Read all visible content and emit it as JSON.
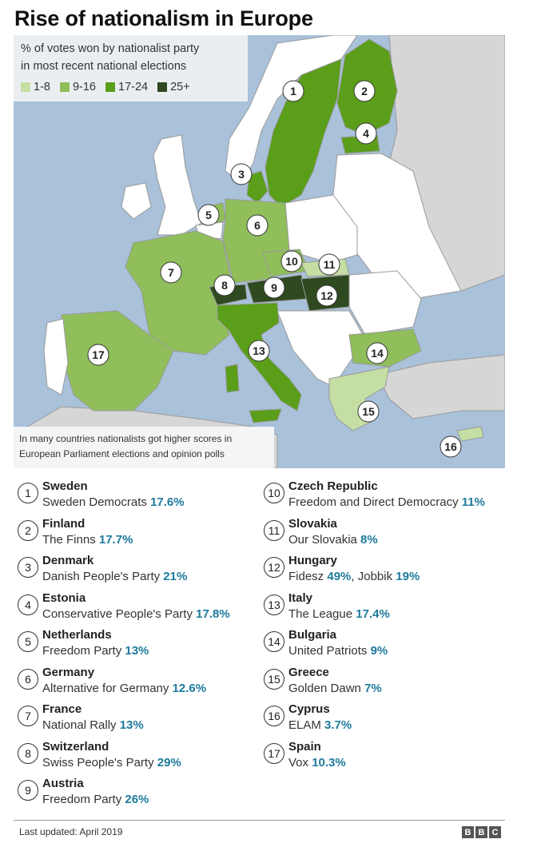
{
  "title": "Rise of nationalism in Europe",
  "legend": {
    "line1": "% of votes won by nationalist party",
    "line2": "in most recent national elections",
    "items": [
      {
        "label": "1-8",
        "color": "#c5dea4"
      },
      {
        "label": "9-16",
        "color": "#8fbe5a"
      },
      {
        "label": "17-24",
        "color": "#5a9e1a"
      },
      {
        "label": "25+",
        "color": "#2f4a20"
      }
    ]
  },
  "note": {
    "line1": "In many countries nationalists got higher scores in",
    "line2": "European Parliament elections and opinion polls"
  },
  "countries": [
    {
      "num": "1",
      "name": "Sweden",
      "party": "Sweden Democrats",
      "pct": "17.6%"
    },
    {
      "num": "2",
      "name": "Finland",
      "party": "The Finns",
      "pct": "17.7%"
    },
    {
      "num": "3",
      "name": "Denmark",
      "party": "Danish People's Party",
      "pct": "21%"
    },
    {
      "num": "4",
      "name": "Estonia",
      "party": "Conservative People's Party",
      "pct": "17.8%"
    },
    {
      "num": "5",
      "name": "Netherlands",
      "party": "Freedom Party",
      "pct": "13%"
    },
    {
      "num": "6",
      "name": "Germany",
      "party": "Alternative for Germany",
      "pct": "12.6%"
    },
    {
      "num": "7",
      "name": "France",
      "party": "National Rally",
      "pct": "13%"
    },
    {
      "num": "8",
      "name": "Switzerland",
      "party": "Swiss People's Party",
      "pct": "29%"
    },
    {
      "num": "9",
      "name": "Austria",
      "party": "Freedom Party",
      "pct": "26%"
    },
    {
      "num": "10",
      "name": "Czech Republic",
      "party": "Freedom and Direct Democracy",
      "pct": "11%"
    },
    {
      "num": "11",
      "name": "Slovakia",
      "party": "Our Slovakia",
      "pct": "8%"
    },
    {
      "num": "12",
      "name": "Hungary",
      "party": "Fidesz",
      "pct": "49%",
      "party2": "Jobbik",
      "pct2": "19%",
      "sep": ", "
    },
    {
      "num": "13",
      "name": "Italy",
      "party": "The League",
      "pct": "17.4%"
    },
    {
      "num": "14",
      "name": "Bulgaria",
      "party": "United Patriots",
      "pct": "9%"
    },
    {
      "num": "15",
      "name": "Greece",
      "party": "Golden Dawn",
      "pct": "7%"
    },
    {
      "num": "16",
      "name": "Cyprus",
      "party": "ELAM",
      "pct": "3.7%"
    },
    {
      "num": "17",
      "name": "Spain",
      "party": "Vox",
      "pct": "10.3%"
    }
  ],
  "footer": {
    "updated": "Last updated: April 2019",
    "logo": [
      "B",
      "B",
      "C"
    ]
  },
  "colors": {
    "sea": "#a9c1d9",
    "other_land": "#ffffff",
    "non_eu_land": "#d6d6d6",
    "border": "#9a9a9a"
  }
}
